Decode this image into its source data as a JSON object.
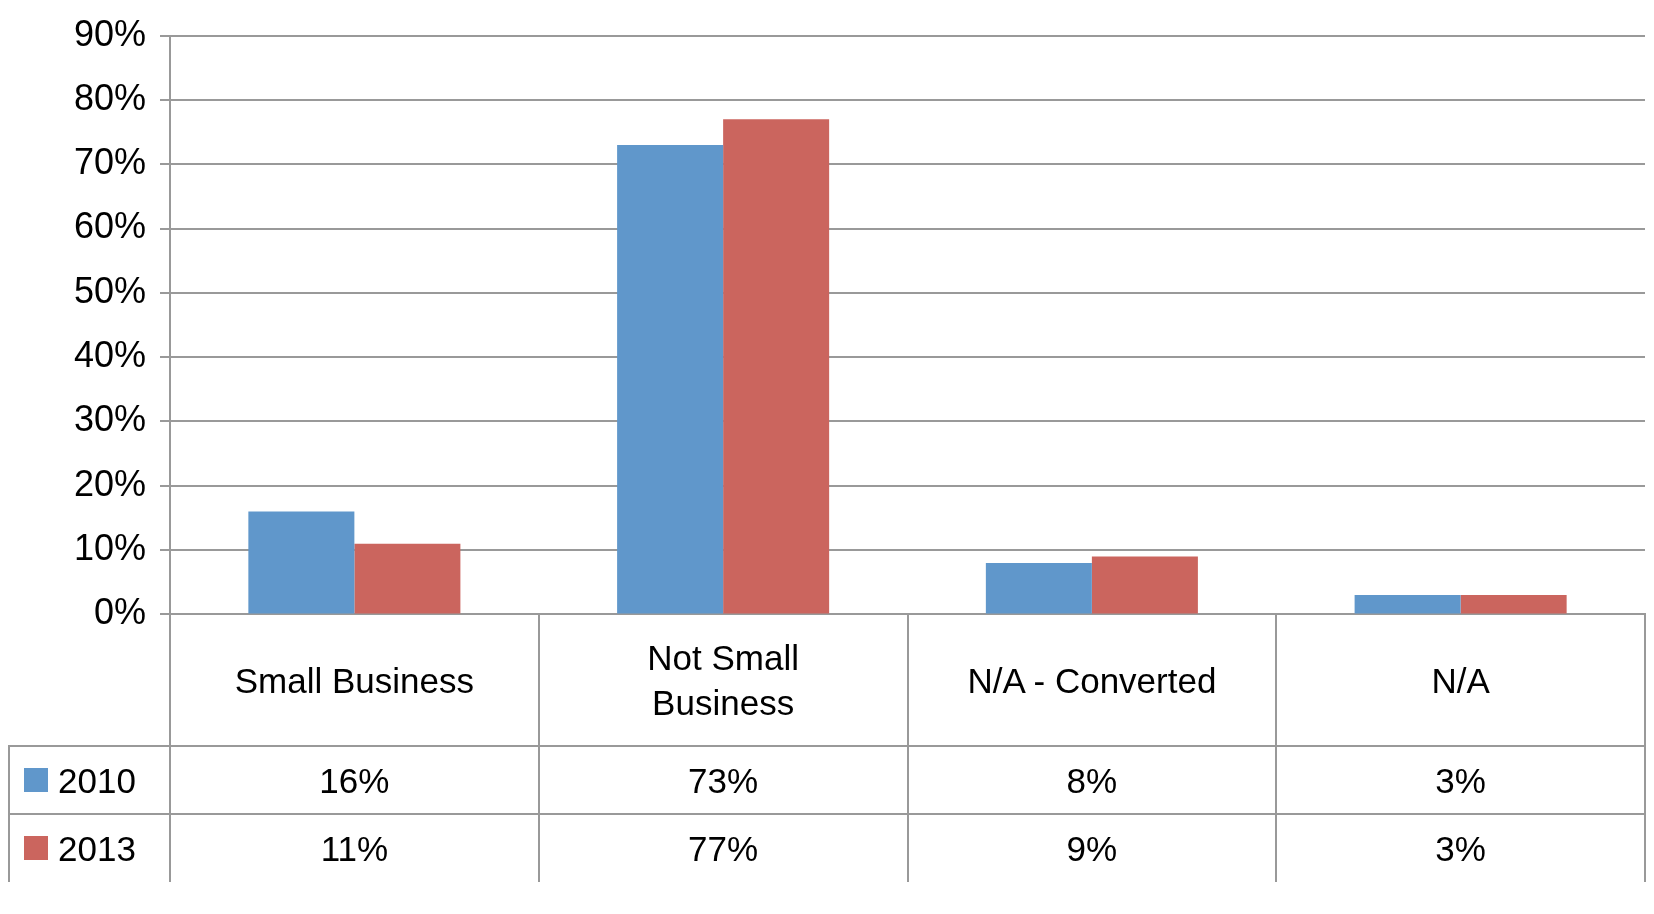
{
  "chart_data": {
    "type": "bar",
    "categories": [
      "Small Business",
      "Not Small Business",
      "N/A - Converted",
      "N/A"
    ],
    "series": [
      {
        "name": "2010",
        "color": "#6097cb",
        "values": [
          16,
          73,
          8,
          3
        ],
        "value_labels": [
          "16%",
          "73%",
          "8%",
          "3%"
        ]
      },
      {
        "name": "2013",
        "color": "#cb655e",
        "values": [
          11,
          77,
          9,
          3
        ],
        "value_labels": [
          "11%",
          "77%",
          "9%",
          "3%"
        ]
      }
    ],
    "ylim": [
      0,
      90
    ],
    "yticks": [
      {
        "value": 0,
        "label": "0%"
      },
      {
        "value": 10,
        "label": "10%"
      },
      {
        "value": 20,
        "label": "20%"
      },
      {
        "value": 30,
        "label": "30%"
      },
      {
        "value": 40,
        "label": "40%"
      },
      {
        "value": 50,
        "label": "50%"
      },
      {
        "value": 60,
        "label": "60%"
      },
      {
        "value": 70,
        "label": "70%"
      },
      {
        "value": 80,
        "label": "80%"
      },
      {
        "value": 90,
        "label": "90%"
      }
    ],
    "grid": "y",
    "legend": "bottom left"
  }
}
